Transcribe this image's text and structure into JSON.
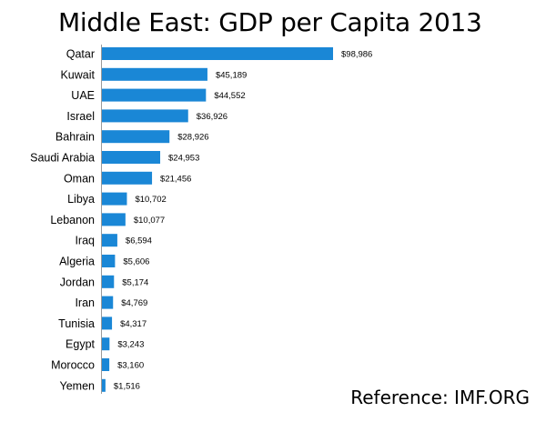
{
  "chart_data": {
    "type": "bar",
    "orientation": "horizontal",
    "title": "Middle East: GDP per Capita 2013",
    "categories": [
      "Qatar",
      "Kuwait",
      "UAE",
      "Israel",
      "Bahrain",
      "Saudi Arabia",
      "Oman",
      "Libya",
      "Lebanon",
      "Iraq",
      "Algeria",
      "Jordan",
      "Iran",
      "Tunisia",
      "Egypt",
      "Morocco",
      "Yemen"
    ],
    "values": [
      98986,
      45189,
      44552,
      36926,
      28926,
      24953,
      21456,
      10702,
      10077,
      6594,
      5606,
      5174,
      4769,
      4317,
      3243,
      3160,
      1516
    ],
    "labels": [
      "$98,986",
      "$45,189",
      "$44,552",
      "$36,926",
      "$28,926",
      "$24,953",
      "$21,456",
      "$10,702",
      "$10,077",
      "$6,594",
      "$5,606",
      "$5,174",
      "$4,769",
      "$4,317",
      "$3,243",
      "$3,160",
      "$1,516"
    ],
    "xlim": [
      0,
      98986
    ],
    "bar_color": "#1a87d6",
    "grid": false,
    "legend": "none"
  },
  "reference": "Reference: IMF.ORG"
}
